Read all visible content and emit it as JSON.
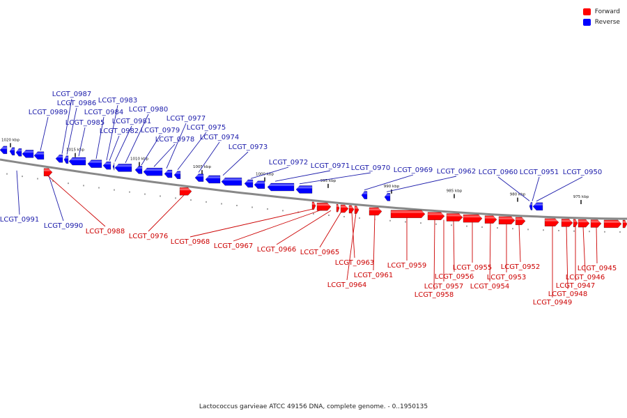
{
  "legend": [
    {
      "label": "Forward",
      "color": "#ff0000"
    },
    {
      "label": "Reverse",
      "color": "#0000ff"
    }
  ],
  "caption": "Lactococcus garvieae ATCC 49156 DNA, complete genome. - 0..1950135",
  "colors": {
    "forward": "#ff0000",
    "reverse": "#0000ff",
    "forward_label": "#cc0000",
    "reverse_label": "#1a1aaa",
    "backbone": "#888888"
  },
  "tick_labels": [
    "1020 kbp",
    "1015 kbp",
    "1010 kbp",
    "1005 kbp",
    "1000 kbp",
    "995 kbp",
    "990 kbp",
    "985 kbp",
    "980 kbp",
    "975 kbp"
  ],
  "reverse_genes": [
    "LCGT_0991",
    "LCGT_0990",
    "LCGT_0989",
    "LCGT_0987",
    "LCGT_0986",
    "LCGT_0985",
    "LCGT_0984",
    "LCGT_0983",
    "LCGT_0982",
    "LCGT_0981",
    "LCGT_0980",
    "LCGT_0979",
    "LCGT_0978",
    "LCGT_0977",
    "LCGT_0975",
    "LCGT_0974",
    "LCGT_0973",
    "LCGT_0972",
    "LCGT_0971",
    "LCGT_0970",
    "LCGT_0969",
    "LCGT_0962",
    "LCGT_0960",
    "LCGT_0951",
    "LCGT_0950"
  ],
  "forward_genes": [
    "LCGT_0988",
    "LCGT_0976",
    "LCGT_0968",
    "LCGT_0967",
    "LCGT_0966",
    "LCGT_0965",
    "LCGT_0963",
    "LCGT_0964",
    "LCGT_0961",
    "LCGT_0959",
    "LCGT_0958",
    "LCGT_0957",
    "LCGT_0956",
    "LCGT_0955",
    "LCGT_0954",
    "LCGT_0953",
    "LCGT_0952",
    "LCGT_0949",
    "LCGT_0948",
    "LCGT_0947",
    "LCGT_0946",
    "LCGT_0945"
  ]
}
